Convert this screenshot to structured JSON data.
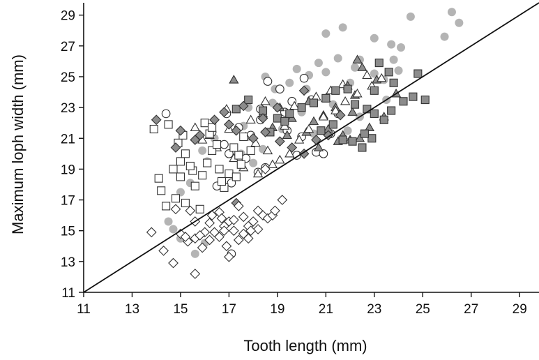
{
  "chart_data": {
    "type": "scatter",
    "title": "",
    "xlabel": "Tooth length (mm)",
    "ylabel": "Maximum loph width (mm)",
    "xlim": [
      11,
      29.8
    ],
    "ylim": [
      11,
      29.8
    ],
    "xticks": [
      "11",
      "13",
      "15",
      "17",
      "19",
      "21",
      "23",
      "25",
      "27",
      "29"
    ],
    "yticks": [
      "11",
      "13",
      "15",
      "17",
      "19",
      "21",
      "23",
      "25",
      "27",
      "29"
    ],
    "grid": false,
    "legend": "none",
    "reference_line": {
      "label": "",
      "x": [
        11,
        29.8
      ],
      "y": [
        11,
        29.8
      ]
    },
    "colors": {
      "gray_fill": "#b4b4b4",
      "dark_fill": "#8c8c8c",
      "open_fill": "#ffffff",
      "edge": "#333333"
    },
    "series": [
      {
        "marker": "circle-filled-gray",
        "points": [
          [
            21.0,
            27.8
          ],
          [
            21.7,
            28.2
          ],
          [
            23.0,
            27.5
          ],
          [
            23.7,
            27.1
          ],
          [
            24.5,
            28.9
          ],
          [
            26.2,
            29.2
          ],
          [
            26.5,
            28.5
          ],
          [
            25.9,
            27.6
          ],
          [
            24.1,
            26.9
          ],
          [
            23.8,
            26.1
          ],
          [
            22.4,
            26.1
          ],
          [
            22.2,
            25.6
          ],
          [
            21.5,
            26.2
          ],
          [
            20.7,
            25.9
          ],
          [
            21.0,
            25.3
          ],
          [
            20.3,
            25.1
          ],
          [
            19.8,
            25.5
          ],
          [
            19.5,
            24.6
          ],
          [
            18.5,
            25.0
          ],
          [
            18.9,
            24.2
          ],
          [
            20.2,
            24.2
          ],
          [
            22.0,
            24.6
          ],
          [
            23.4,
            24.8
          ],
          [
            24.0,
            25.4
          ],
          [
            23.0,
            25.2
          ],
          [
            18.8,
            23.3
          ],
          [
            17.8,
            23.0
          ],
          [
            17.6,
            21.8
          ],
          [
            16.4,
            21.0
          ],
          [
            15.9,
            20.2
          ],
          [
            16.1,
            19.5
          ],
          [
            15.4,
            18.1
          ],
          [
            15.0,
            17.5
          ],
          [
            14.5,
            15.6
          ],
          [
            14.7,
            15.1
          ],
          [
            15.0,
            14.5
          ],
          [
            15.6,
            13.5
          ],
          [
            16.0,
            14.2
          ],
          [
            20.5,
            21.3
          ],
          [
            21.9,
            21.5
          ],
          [
            22.4,
            22.4
          ],
          [
            23.5,
            23.5
          ],
          [
            21.3,
            23.2
          ],
          [
            20.0,
            22.7
          ],
          [
            19.2,
            21.6
          ],
          [
            18.4,
            20.3
          ],
          [
            17.5,
            20.0
          ],
          [
            18.0,
            19.4
          ]
        ]
      },
      {
        "marker": "circle-open",
        "points": [
          [
            14.4,
            22.6
          ],
          [
            16.9,
            22.6
          ],
          [
            18.3,
            22.9
          ],
          [
            18.6,
            24.7
          ],
          [
            19.1,
            24.2
          ],
          [
            19.6,
            23.4
          ],
          [
            20.1,
            24.9
          ],
          [
            20.4,
            23.5
          ],
          [
            19.3,
            22.7
          ],
          [
            17.4,
            21.7
          ],
          [
            16.8,
            20.6
          ],
          [
            17.0,
            20.0
          ],
          [
            17.7,
            19.7
          ],
          [
            18.5,
            19.1
          ],
          [
            18.2,
            18.8
          ],
          [
            17.1,
            18.1
          ],
          [
            16.5,
            17.9
          ],
          [
            20.6,
            20.1
          ],
          [
            20.9,
            20.0
          ],
          [
            21.2,
            21.3
          ],
          [
            19.4,
            21.5
          ],
          [
            20.0,
            21.1
          ],
          [
            17.1,
            13.5
          ],
          [
            18.3,
            22.2
          ],
          [
            16.3,
            21.4
          ],
          [
            19.8,
            19.9
          ],
          [
            21.5,
            22.6
          ],
          [
            17.9,
            21.2
          ]
        ]
      },
      {
        "marker": "triangle-dark",
        "points": [
          [
            17.2,
            24.8
          ],
          [
            21.9,
            24.4
          ],
          [
            22.5,
            25.6
          ],
          [
            22.3,
            26.1
          ],
          [
            23.1,
            24.8
          ],
          [
            22.2,
            23.8
          ],
          [
            21.4,
            23.0
          ],
          [
            20.9,
            22.5
          ],
          [
            20.5,
            22.1
          ],
          [
            21.1,
            21.6
          ],
          [
            21.7,
            21.2
          ],
          [
            22.0,
            20.9
          ],
          [
            22.8,
            21.7
          ],
          [
            23.4,
            22.4
          ],
          [
            23.9,
            23.9
          ],
          [
            20.2,
            21.4
          ],
          [
            19.6,
            22.3
          ],
          [
            19.1,
            23.0
          ],
          [
            18.4,
            22.6
          ],
          [
            18.8,
            21.7
          ],
          [
            19.4,
            21.2
          ],
          [
            20.7,
            20.4
          ],
          [
            21.5,
            20.8
          ],
          [
            22.1,
            22.7
          ],
          [
            22.4,
            21.0
          ],
          [
            21.0,
            23.6
          ],
          [
            20.3,
            23.4
          ]
        ]
      },
      {
        "marker": "triangle-open",
        "points": [
          [
            15.6,
            21.7
          ],
          [
            16.2,
            21.2
          ],
          [
            17.0,
            21.6
          ],
          [
            17.7,
            21.1
          ],
          [
            18.1,
            20.7
          ],
          [
            18.6,
            20.2
          ],
          [
            19.1,
            19.6
          ],
          [
            19.5,
            20.0
          ],
          [
            19.9,
            20.9
          ],
          [
            20.3,
            21.6
          ],
          [
            20.9,
            22.4
          ],
          [
            21.4,
            22.8
          ],
          [
            21.8,
            23.4
          ],
          [
            22.3,
            23.9
          ],
          [
            22.9,
            24.4
          ],
          [
            23.3,
            24.9
          ],
          [
            16.5,
            20.4
          ],
          [
            17.2,
            19.7
          ],
          [
            17.6,
            19.1
          ],
          [
            18.2,
            18.7
          ],
          [
            18.8,
            19.3
          ],
          [
            19.3,
            21.8
          ],
          [
            19.7,
            23.1
          ],
          [
            20.6,
            23.7
          ],
          [
            21.2,
            24.1
          ],
          [
            21.7,
            24.5
          ],
          [
            17.9,
            22.2
          ],
          [
            18.5,
            23.4
          ],
          [
            16.9,
            22.9
          ],
          [
            15.9,
            20.9
          ],
          [
            22.7,
            25.1
          ]
        ]
      },
      {
        "marker": "square-dark",
        "points": [
          [
            17.8,
            23.5
          ],
          [
            18.4,
            22.8
          ],
          [
            19.0,
            22.3
          ],
          [
            19.5,
            22.6
          ],
          [
            20.0,
            23.0
          ],
          [
            20.5,
            23.3
          ],
          [
            21.0,
            23.6
          ],
          [
            21.4,
            24.1
          ],
          [
            21.9,
            24.2
          ],
          [
            22.2,
            23.2
          ],
          [
            22.7,
            22.9
          ],
          [
            23.0,
            24.1
          ],
          [
            23.2,
            25.9
          ],
          [
            23.6,
            25.3
          ],
          [
            23.0,
            22.6
          ],
          [
            23.4,
            22.2
          ],
          [
            23.7,
            22.8
          ],
          [
            24.2,
            23.4
          ],
          [
            24.6,
            23.7
          ],
          [
            25.1,
            23.5
          ],
          [
            23.8,
            24.6
          ],
          [
            21.7,
            20.9
          ],
          [
            22.1,
            20.8
          ],
          [
            22.5,
            20.4
          ],
          [
            22.9,
            21.0
          ],
          [
            21.3,
            21.9
          ],
          [
            20.8,
            21.5
          ],
          [
            18.7,
            21.4
          ],
          [
            19.3,
            22.1
          ],
          [
            17.3,
            22.9
          ],
          [
            24.8,
            25.2
          ],
          [
            22.6,
            21.3
          ]
        ]
      },
      {
        "marker": "square-open",
        "points": [
          [
            13.9,
            21.6
          ],
          [
            14.1,
            18.4
          ],
          [
            14.2,
            17.6
          ],
          [
            14.4,
            16.6
          ],
          [
            14.8,
            17.1
          ],
          [
            15.0,
            18.5
          ],
          [
            15.0,
            19.5
          ],
          [
            15.2,
            20.0
          ],
          [
            15.5,
            18.9
          ],
          [
            15.2,
            16.8
          ],
          [
            15.6,
            17.9
          ],
          [
            15.9,
            18.6
          ],
          [
            16.1,
            19.4
          ],
          [
            16.3,
            20.2
          ],
          [
            16.6,
            19.0
          ],
          [
            17.0,
            18.7
          ],
          [
            16.8,
            17.8
          ],
          [
            17.3,
            18.5
          ],
          [
            17.4,
            19.9
          ],
          [
            17.9,
            20.2
          ],
          [
            16.0,
            22.0
          ],
          [
            16.2,
            21.3
          ],
          [
            14.9,
            20.7
          ],
          [
            14.5,
            21.9
          ],
          [
            15.8,
            16.4
          ],
          [
            16.5,
            20.6
          ],
          [
            17.6,
            21.1
          ],
          [
            15.4,
            19.2
          ],
          [
            16.7,
            18.2
          ],
          [
            15.1,
            21.2
          ],
          [
            17.2,
            20.4
          ],
          [
            17.5,
            19.3
          ],
          [
            14.7,
            19.0
          ],
          [
            16.3,
            21.7
          ]
        ]
      },
      {
        "marker": "diamond-dark",
        "points": [
          [
            14.0,
            22.2
          ],
          [
            15.0,
            21.5
          ],
          [
            15.6,
            20.9
          ],
          [
            16.4,
            22.2
          ],
          [
            17.3,
            21.5
          ],
          [
            18.0,
            21.0
          ],
          [
            18.5,
            21.4
          ],
          [
            19.1,
            20.8
          ],
          [
            19.6,
            20.4
          ],
          [
            20.1,
            20.0
          ],
          [
            20.6,
            20.9
          ],
          [
            20.1,
            24.1
          ],
          [
            21.1,
            21.2
          ],
          [
            21.6,
            22.5
          ],
          [
            17.0,
            21.9
          ],
          [
            17.6,
            23.1
          ],
          [
            19.0,
            23.0
          ],
          [
            18.4,
            22.3
          ],
          [
            17.3,
            16.8
          ],
          [
            16.8,
            22.7
          ],
          [
            15.8,
            21.2
          ],
          [
            14.8,
            20.4
          ]
        ]
      },
      {
        "marker": "diamond-open",
        "points": [
          [
            13.8,
            14.9
          ],
          [
            14.3,
            13.7
          ],
          [
            14.7,
            12.9
          ],
          [
            15.0,
            14.8
          ],
          [
            15.3,
            14.3
          ],
          [
            15.6,
            14.5
          ],
          [
            15.9,
            13.9
          ],
          [
            15.6,
            12.2
          ],
          [
            16.2,
            14.4
          ],
          [
            16.4,
            14.9
          ],
          [
            16.6,
            14.6
          ],
          [
            16.8,
            15.3
          ],
          [
            17.0,
            15.6
          ],
          [
            17.2,
            15.0
          ],
          [
            17.4,
            14.4
          ],
          [
            17.6,
            14.8
          ],
          [
            17.8,
            15.3
          ],
          [
            18.0,
            15.6
          ],
          [
            18.2,
            15.1
          ],
          [
            18.4,
            16.0
          ],
          [
            18.6,
            15.8
          ],
          [
            18.2,
            16.3
          ],
          [
            17.6,
            15.9
          ],
          [
            17.0,
            13.3
          ],
          [
            16.0,
            14.9
          ],
          [
            15.6,
            15.6
          ],
          [
            15.4,
            16.3
          ],
          [
            16.6,
            16.2
          ],
          [
            17.4,
            16.6
          ],
          [
            18.8,
            16.0
          ],
          [
            17.8,
            14.5
          ],
          [
            19.2,
            17.0
          ],
          [
            16.9,
            14.0
          ],
          [
            16.2,
            15.5
          ],
          [
            17.2,
            15.7
          ],
          [
            15.8,
            14.7
          ],
          [
            16.7,
            15.8
          ],
          [
            18.9,
            16.3
          ],
          [
            16.8,
            15.0
          ],
          [
            17.9,
            15.0
          ],
          [
            15.2,
            14.6
          ],
          [
            16.3,
            16.0
          ],
          [
            14.8,
            16.4
          ],
          [
            18.5,
            19.0
          ]
        ]
      }
    ]
  }
}
